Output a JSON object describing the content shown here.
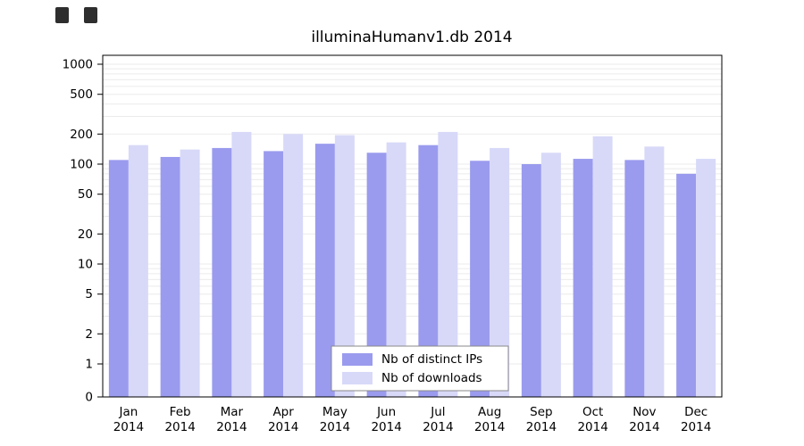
{
  "figure": {
    "title": "illuminaHumanv1.db 2014"
  },
  "colors": {
    "background": "#ffffff",
    "grid": "#ebebeb",
    "axis": "#000000",
    "legend_border": "#8a8a8a",
    "ips_bar": "#9a9bee",
    "downloads_bar": "#d8d9f8"
  },
  "legend": {
    "items": [
      {
        "label": "Nb of distinct IPs"
      },
      {
        "label": "Nb of downloads"
      }
    ]
  },
  "chart_data": {
    "type": "bar",
    "title": "illuminaHumanv1.db 2014",
    "yscale": "log",
    "grid": true,
    "legend_position": "inside-bottom-center",
    "ylim": [
      0,
      1000
    ],
    "yticks": [
      0,
      1,
      2,
      5,
      10,
      20,
      50,
      100,
      200,
      500,
      1000
    ],
    "xlabel": "",
    "ylabel": "",
    "categories": [
      "Jan 2014",
      "Feb 2014",
      "Mar 2014",
      "Apr 2014",
      "May 2014",
      "Jun 2014",
      "Jul 2014",
      "Aug 2014",
      "Sep 2014",
      "Oct 2014",
      "Nov 2014",
      "Dec 2014"
    ],
    "series": [
      {
        "name": "Nb of distinct IPs",
        "color": "#9a9bee",
        "values": [
          110,
          118,
          145,
          135,
          160,
          130,
          155,
          108,
          100,
          113,
          110,
          80
        ]
      },
      {
        "name": "Nb of downloads",
        "color": "#d8d9f8",
        "values": [
          155,
          140,
          210,
          200,
          195,
          165,
          210,
          145,
          130,
          190,
          150,
          113
        ]
      }
    ]
  }
}
